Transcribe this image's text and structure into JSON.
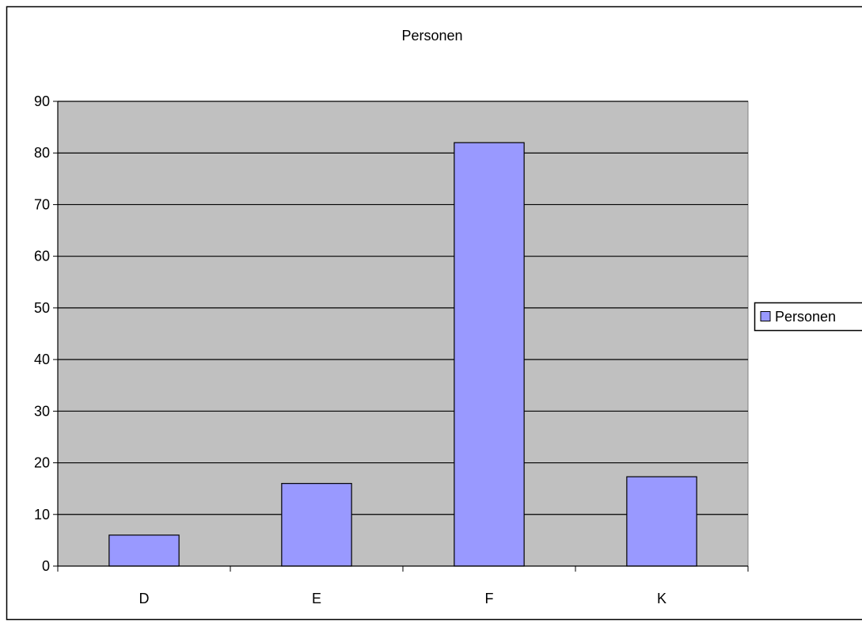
{
  "chart_data": {
    "type": "bar",
    "title": "Personen",
    "categories": [
      "D",
      "E",
      "F",
      "K"
    ],
    "series": [
      {
        "name": "Personen",
        "values": [
          6,
          16,
          82,
          17.3
        ],
        "color": "#9999ff"
      }
    ],
    "ylim": [
      0,
      90
    ],
    "yticks": [
      0,
      10,
      20,
      30,
      40,
      50,
      60,
      70,
      80,
      90
    ],
    "grid": true,
    "legend": "right",
    "plot_background": "#c0c0c0"
  }
}
